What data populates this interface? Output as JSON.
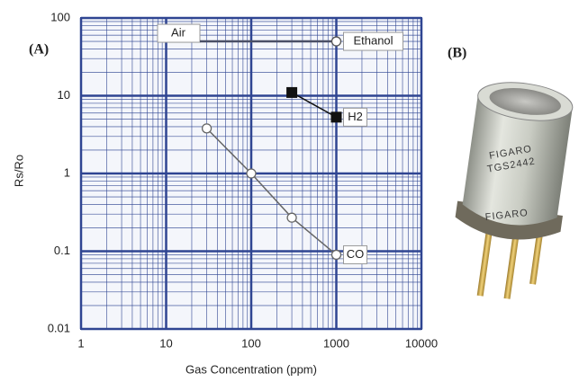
{
  "chart_data": {
    "type": "line",
    "x_label": "Gas Concentration (ppm)",
    "y_label": "Rs/Ro",
    "log_x": true,
    "log_y": true,
    "grid": true,
    "grid_color": "#2f4592",
    "xlim": [
      1,
      10000
    ],
    "xticks": [
      1,
      10,
      100,
      1000,
      10000
    ],
    "ylim": [
      0.01,
      100
    ],
    "yticks": [
      0.01,
      0.1,
      1,
      10,
      100
    ],
    "annotation": "Air",
    "series": [
      {
        "name": "Ethanol",
        "color": "#555555",
        "marker": "circle",
        "x": [
          1000
        ],
        "values": [
          50
        ]
      },
      {
        "name": "H2",
        "color": "#111111",
        "marker": "square",
        "x": [
          300,
          1000
        ],
        "values": [
          11,
          5.3
        ]
      },
      {
        "name": "CO",
        "color": "#666666",
        "marker": "circle",
        "x": [
          30,
          100,
          300,
          1000
        ],
        "values": [
          3.8,
          1,
          0.27,
          0.09
        ]
      }
    ]
  },
  "panels": {
    "a": "(A)",
    "b": "(B)"
  },
  "sensor_markings": [
    "FIGARO",
    "TGS2442",
    "FIGARO"
  ]
}
